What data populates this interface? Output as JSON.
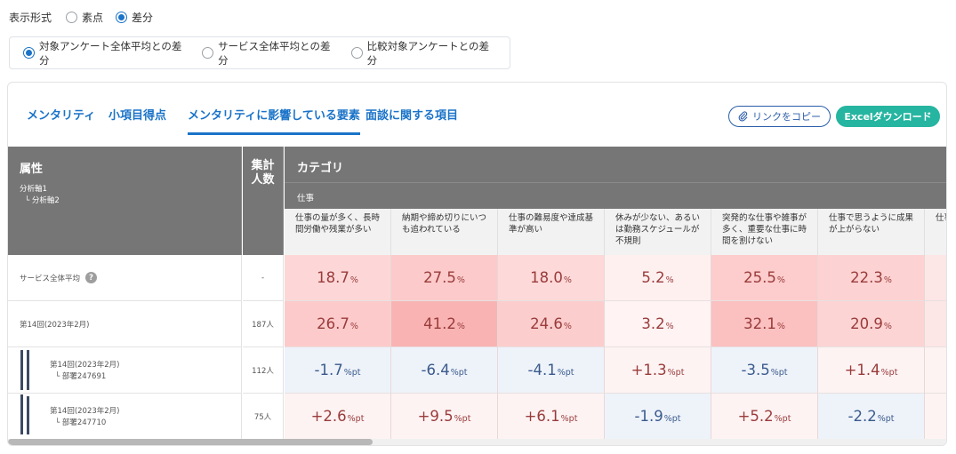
{
  "display_mode": {
    "label": "表示形式",
    "options": [
      {
        "label": "素点",
        "selected": false
      },
      {
        "label": "差分",
        "selected": true
      }
    ]
  },
  "diff_mode": {
    "options": [
      {
        "label": "対象アンケート全体平均との差分",
        "selected": true
      },
      {
        "label": "サービス全体平均との差分",
        "selected": false
      },
      {
        "label": "比較対象アンケートとの差分",
        "selected": false
      }
    ]
  },
  "tabs": [
    {
      "label": "メンタリティ",
      "active": false
    },
    {
      "label": "小項目得点",
      "active": false
    },
    {
      "label": "メンタリティに影響している要素",
      "active": true
    },
    {
      "label": "面談に関する項目",
      "active": false
    }
  ],
  "buttons": {
    "copy_link": "リンクをコピー",
    "excel_download": "Excelダウンロード"
  },
  "table": {
    "attr_header": "属性",
    "attr_sub1": "分析軸1",
    "attr_sub2": "└ 分析軸2",
    "count_header": "集計\n人数",
    "category_header": "カテゴリ",
    "subcategory": "仕事",
    "columns": [
      "仕事の量が多く、長時間労働や残業が多い",
      "納期や締め切りにいつも追われている",
      "仕事の難易度や達成基準が高い",
      "休みが少ない、あるいは勤務スケジュールが不規則",
      "突発的な仕事や雑事が多く、重要な仕事に時間を割けない",
      "仕事で思うように成果が上がらない",
      "仕事は"
    ],
    "rows": [
      {
        "label": "サービス全体平均",
        "help": "?",
        "count": "-",
        "values": [
          {
            "num": "18.7",
            "unit": "%",
            "bg": "#fdd7d7",
            "color": "#9a3b3b"
          },
          {
            "num": "27.5",
            "unit": "%",
            "bg": "#fccaca",
            "color": "#9a3b3b"
          },
          {
            "num": "18.0",
            "unit": "%",
            "bg": "#fdd9d9",
            "color": "#9a3b3b"
          },
          {
            "num": "5.2",
            "unit": "%",
            "bg": "#fff0f0",
            "color": "#9a3b3b"
          },
          {
            "num": "25.5",
            "unit": "%",
            "bg": "#fdcccc",
            "color": "#9a3b3b"
          },
          {
            "num": "22.3",
            "unit": "%",
            "bg": "#fdd2d2",
            "color": "#9a3b3b"
          },
          {
            "num": "",
            "unit": "",
            "bg": "#fde6e6",
            "color": "#9a3b3b"
          }
        ]
      },
      {
        "label": "第14回(2023年2月)",
        "count": "187人",
        "values": [
          {
            "num": "26.7",
            "unit": "%",
            "bg": "#fccaca",
            "color": "#9a3b3b"
          },
          {
            "num": "41.2",
            "unit": "%",
            "bg": "#f9b3b3",
            "color": "#9a3b3b"
          },
          {
            "num": "24.6",
            "unit": "%",
            "bg": "#fccdcd",
            "color": "#9a3b3b"
          },
          {
            "num": "3.2",
            "unit": "%",
            "bg": "#fff3f3",
            "color": "#9a3b3b"
          },
          {
            "num": "32.1",
            "unit": "%",
            "bg": "#fbc0c0",
            "color": "#9a3b3b"
          },
          {
            "num": "20.9",
            "unit": "%",
            "bg": "#fdd4d4",
            "color": "#9a3b3b"
          },
          {
            "num": "",
            "unit": "",
            "bg": "#fde6e6",
            "color": "#9a3b3b"
          }
        ]
      },
      {
        "label1": "第14回(2023年2月)",
        "label2": "└ 部署247691",
        "count": "112人",
        "values": [
          {
            "num": "-1.7",
            "unit": "%pt",
            "bg": "#eef3fa",
            "color": "#3a5a8c"
          },
          {
            "num": "-6.4",
            "unit": "%pt",
            "bg": "#eef3fa",
            "color": "#3a5a8c"
          },
          {
            "num": "-4.1",
            "unit": "%pt",
            "bg": "#eef3fa",
            "color": "#3a5a8c"
          },
          {
            "num": "+1.3",
            "unit": "%pt",
            "bg": "#fdf3f3",
            "color": "#9a3b3b"
          },
          {
            "num": "-3.5",
            "unit": "%pt",
            "bg": "#eef3fa",
            "color": "#3a5a8c"
          },
          {
            "num": "+1.4",
            "unit": "%pt",
            "bg": "#fdf3f3",
            "color": "#9a3b3b"
          },
          {
            "num": "",
            "unit": "",
            "bg": "#fdf3f3",
            "color": "#9a3b3b"
          }
        ]
      },
      {
        "label1": "第14回(2023年2月)",
        "label2": "└ 部署247710",
        "count": "75人",
        "values": [
          {
            "num": "+2.6",
            "unit": "%pt",
            "bg": "#fdf3f3",
            "color": "#9a3b3b"
          },
          {
            "num": "+9.5",
            "unit": "%pt",
            "bg": "#fdf3f3",
            "color": "#9a3b3b"
          },
          {
            "num": "+6.1",
            "unit": "%pt",
            "bg": "#fdf3f3",
            "color": "#9a3b3b"
          },
          {
            "num": "-1.9",
            "unit": "%pt",
            "bg": "#eef3fa",
            "color": "#3a5a8c"
          },
          {
            "num": "+5.2",
            "unit": "%pt",
            "bg": "#fdf3f3",
            "color": "#9a3b3b"
          },
          {
            "num": "-2.2",
            "unit": "%pt",
            "bg": "#eef3fa",
            "color": "#3a5a8c"
          },
          {
            "num": "",
            "unit": "",
            "bg": "#fdf3f3",
            "color": "#9a3b3b"
          }
        ]
      }
    ]
  }
}
